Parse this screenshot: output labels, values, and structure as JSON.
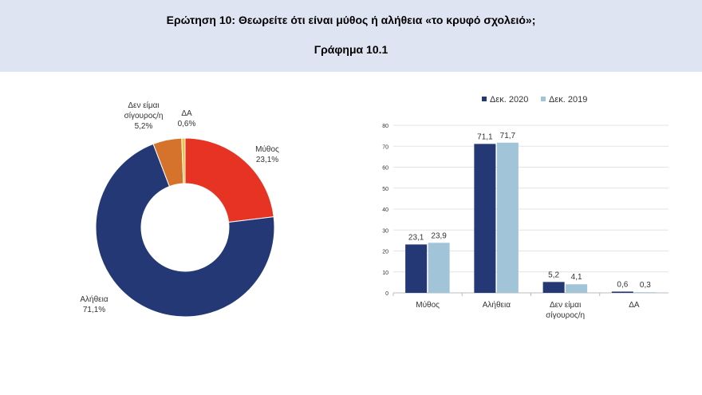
{
  "header": {
    "title": "Ερώτηση 10: Θεωρείτε ότι είναι μύθος ή αλήθεια «το κρυφό σχολειό»;",
    "subtitle": "Γράφημα 10.1"
  },
  "chart_data": [
    {
      "type": "pie",
      "donut": true,
      "slices": [
        {
          "label": "Μύθος",
          "value": 23.1,
          "display": "23,1%",
          "color": "#e63323"
        },
        {
          "label": "Αλήθεια",
          "value": 71.1,
          "display": "71,1%",
          "color": "#233875"
        },
        {
          "label": "Δεν είμαι σίγουρος/η",
          "value": 5.2,
          "display": "5,2%",
          "color": "#d5722c"
        },
        {
          "label": "ΔΑ",
          "value": 0.6,
          "display": "0,6%",
          "color": "#f3c23c"
        }
      ]
    },
    {
      "type": "bar",
      "categories": [
        "Μύθος",
        "Αλήθεια",
        "Δεν είμαι σίγουρος/η",
        "ΔΑ"
      ],
      "series": [
        {
          "name": "Δεκ. 2020",
          "values": [
            23.1,
            71.1,
            5.2,
            0.6
          ],
          "labels": [
            "23,1",
            "71,1",
            "5,2",
            "0,6"
          ],
          "color": "#233875"
        },
        {
          "name": "Δεκ. 2019",
          "values": [
            23.9,
            71.7,
            4.1,
            0.3
          ],
          "labels": [
            "23,9",
            "71,7",
            "4,1",
            "0,3"
          ],
          "color": "#a2c4d8"
        }
      ],
      "ylim": [
        0,
        80
      ],
      "yticks": [
        0,
        10,
        20,
        30,
        40,
        50,
        60,
        70,
        80
      ],
      "grid": true,
      "legend": "top"
    }
  ]
}
